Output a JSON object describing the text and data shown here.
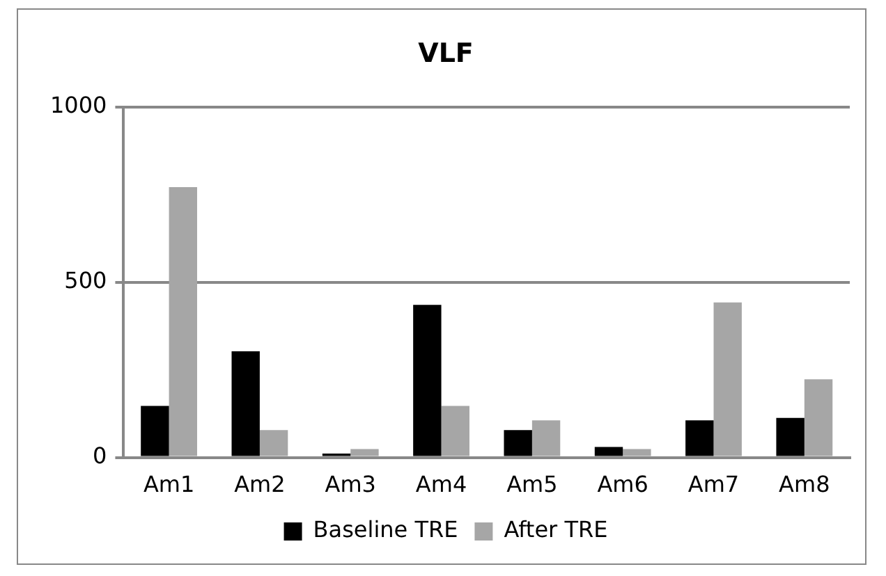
{
  "chart_data": {
    "type": "bar",
    "title": "VLF",
    "categories": [
      "Am1",
      "Am2",
      "Am3",
      "Am4",
      "Am5",
      "Am6",
      "Am7",
      "Am8"
    ],
    "series": [
      {
        "name": "Baseline TRE",
        "color": "#000000",
        "values": [
          147,
          303,
          11,
          435,
          78,
          30,
          106,
          113
        ]
      },
      {
        "name": "After TRE",
        "color": "#a6a6a6",
        "values": [
          771,
          78,
          24,
          147,
          106,
          24,
          442,
          223
        ]
      }
    ],
    "ylim": [
      0,
      1000
    ],
    "yticks": [
      0,
      500,
      1000
    ],
    "grid": "y",
    "legend": "bottom"
  }
}
